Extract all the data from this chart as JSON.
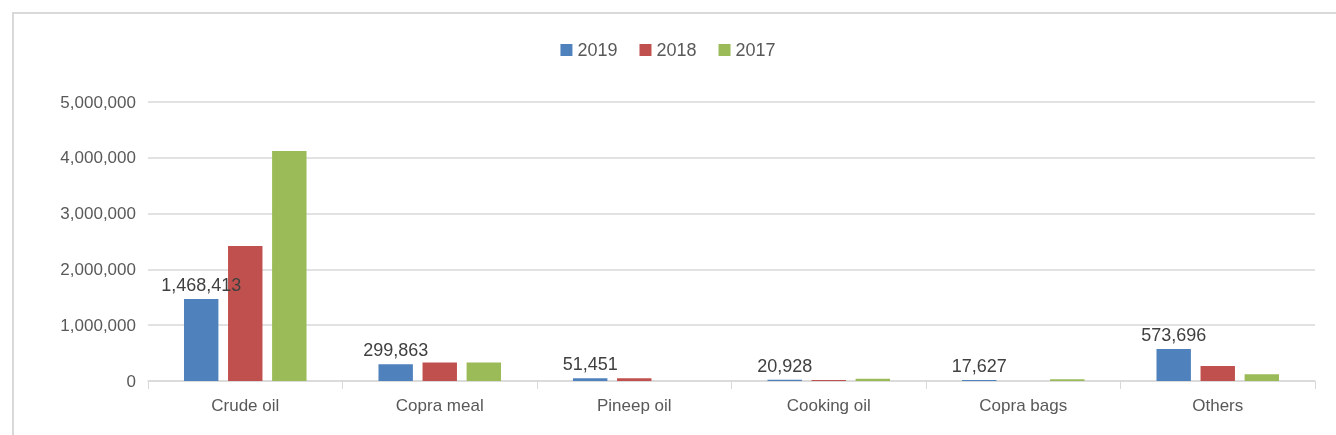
{
  "chart_data": {
    "type": "bar",
    "categories": [
      "Crude oil",
      "Copra meal",
      "Pineep oil",
      "Cooking oil",
      "Copra bags",
      "Others"
    ],
    "series": [
      {
        "name": "2019",
        "color": "#4f81bd",
        "values": [
          1468413,
          299863,
          51451,
          20928,
          17627,
          573696
        ],
        "value_labels": [
          "1,468,413",
          "299,863",
          "51,451",
          "20,928",
          "17,627",
          "573,696"
        ]
      },
      {
        "name": "2018",
        "color": "#c0504d",
        "values": [
          2420000,
          330000,
          50000,
          20000,
          null,
          270000
        ]
      },
      {
        "name": "2017",
        "color": "#9bbb59",
        "values": [
          4120000,
          330000,
          null,
          40000,
          30000,
          120000
        ]
      }
    ],
    "ylim": [
      0,
      5000000
    ],
    "yticks": [
      {
        "value": 0,
        "label": "0"
      },
      {
        "value": 1000000,
        "label": "1,000,000"
      },
      {
        "value": 2000000,
        "label": "2,000,000"
      },
      {
        "value": 3000000,
        "label": "3,000,000"
      },
      {
        "value": 4000000,
        "label": "4,000,000"
      },
      {
        "value": 5000000,
        "label": "5,000,000"
      }
    ],
    "grid": "y",
    "legend": "top"
  }
}
